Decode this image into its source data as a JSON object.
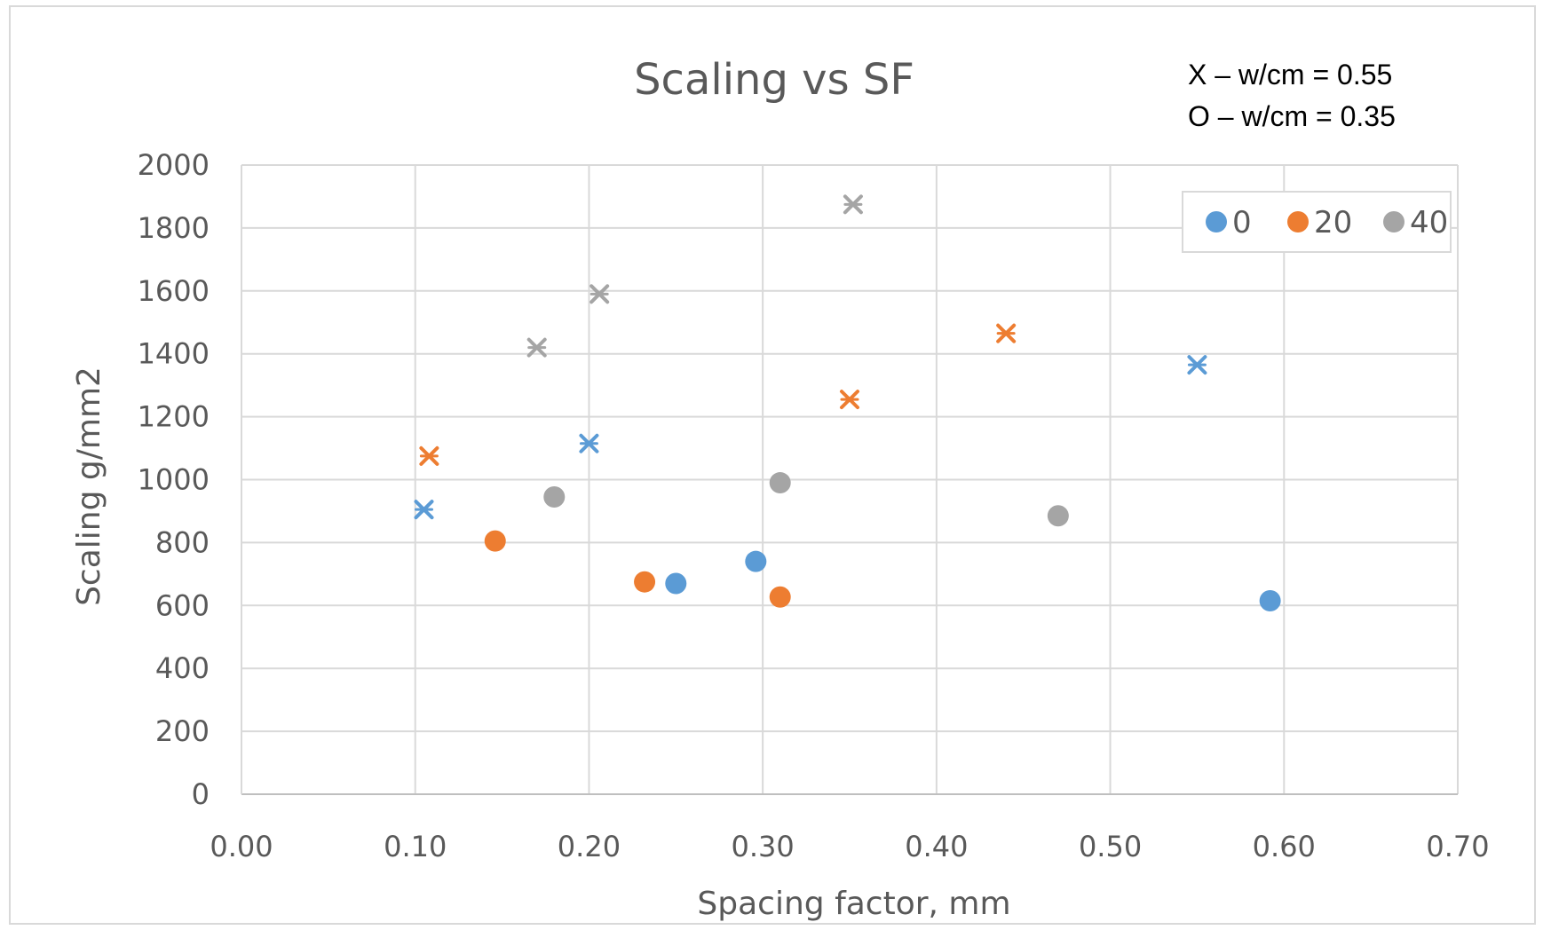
{
  "chart_data": {
    "type": "scatter",
    "title": "Scaling vs SF",
    "xlabel": "Spacing factor, mm",
    "ylabel": "Scaling g/mm2",
    "xlim": [
      0,
      0.7
    ],
    "ylim": [
      0,
      2000
    ],
    "x_ticks": [
      "0.00",
      "0.10",
      "0.20",
      "0.30",
      "0.40",
      "0.50",
      "0.60",
      "0.70"
    ],
    "y_ticks": [
      "0",
      "200",
      "400",
      "600",
      "800",
      "1000",
      "1200",
      "1400",
      "1600",
      "1800",
      "2000"
    ],
    "grid": true,
    "legend_position": "top-right",
    "annotations": [
      "X – w/cm = 0.55",
      "O – w/cm = 0.35"
    ],
    "series": [
      {
        "name": "0",
        "color": "#5b9bd5",
        "points": [
          {
            "x": 0.25,
            "y": 670,
            "marker": "circle"
          },
          {
            "x": 0.296,
            "y": 740,
            "marker": "circle"
          },
          {
            "x": 0.592,
            "y": 615,
            "marker": "circle"
          },
          {
            "x": 0.105,
            "y": 905,
            "marker": "x"
          },
          {
            "x": 0.2,
            "y": 1115,
            "marker": "x"
          },
          {
            "x": 0.55,
            "y": 1365,
            "marker": "x"
          }
        ]
      },
      {
        "name": "20",
        "color": "#ed7d31",
        "points": [
          {
            "x": 0.146,
            "y": 805,
            "marker": "circle"
          },
          {
            "x": 0.232,
            "y": 675,
            "marker": "circle"
          },
          {
            "x": 0.31,
            "y": 627,
            "marker": "circle"
          },
          {
            "x": 0.108,
            "y": 1075,
            "marker": "x"
          },
          {
            "x": 0.35,
            "y": 1255,
            "marker": "x"
          },
          {
            "x": 0.44,
            "y": 1465,
            "marker": "x"
          }
        ]
      },
      {
        "name": "40",
        "color": "#a5a5a5",
        "points": [
          {
            "x": 0.18,
            "y": 945,
            "marker": "circle"
          },
          {
            "x": 0.31,
            "y": 990,
            "marker": "circle"
          },
          {
            "x": 0.47,
            "y": 885,
            "marker": "circle"
          },
          {
            "x": 0.17,
            "y": 1420,
            "marker": "x"
          },
          {
            "x": 0.206,
            "y": 1590,
            "marker": "x"
          },
          {
            "x": 0.352,
            "y": 1875,
            "marker": "x"
          }
        ]
      }
    ]
  }
}
